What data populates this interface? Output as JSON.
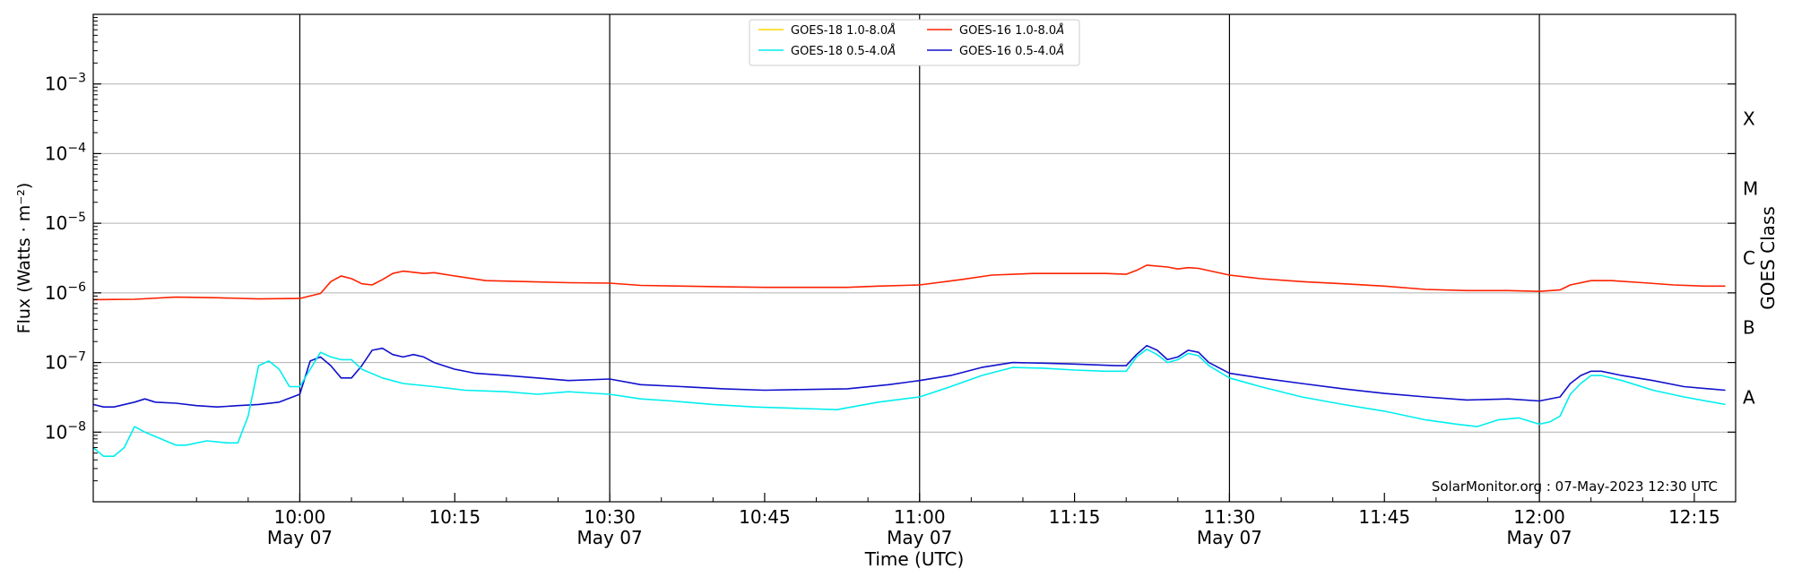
{
  "chart_data": {
    "type": "line",
    "xlabel": "Time (UTC)",
    "ylabel": "Flux (Watts · m⁻²)",
    "right_ylabel": "GOES Class",
    "xlim": [
      "09:40",
      "12:19"
    ],
    "ylim_log10": [
      -9.0,
      -2.0
    ],
    "y_scale": "log",
    "grid": "horizontal at each decade",
    "y_ticks": [
      {
        "value": "1e-8",
        "label": "10",
        "exp": "−8"
      },
      {
        "value": "1e-7",
        "label": "10",
        "exp": "−7"
      },
      {
        "value": "1e-6",
        "label": "10",
        "exp": "−6"
      },
      {
        "value": "1e-5",
        "label": "10",
        "exp": "−5"
      },
      {
        "value": "1e-4",
        "label": "10",
        "exp": "−4"
      },
      {
        "value": "1e-3",
        "label": "10",
        "exp": "−3"
      }
    ],
    "x_ticks": [
      {
        "time": "10:00",
        "date": "May 07"
      },
      {
        "time": "10:15",
        "date": ""
      },
      {
        "time": "10:30",
        "date": "May 07"
      },
      {
        "time": "10:45",
        "date": ""
      },
      {
        "time": "11:00",
        "date": "May 07"
      },
      {
        "time": "11:15",
        "date": ""
      },
      {
        "time": "11:30",
        "date": "May 07"
      },
      {
        "time": "11:45",
        "date": ""
      },
      {
        "time": "12:00",
        "date": "May 07"
      },
      {
        "time": "12:15",
        "date": ""
      }
    ],
    "vertical_lines": [
      "10:00",
      "10:30",
      "11:00",
      "11:30",
      "12:00"
    ],
    "goes_classes": [
      {
        "label": "X",
        "flux": "1e-4"
      },
      {
        "label": "M",
        "flux": "1e-5"
      },
      {
        "label": "C",
        "flux": "1e-6"
      },
      {
        "label": "B",
        "flux": "1e-7"
      },
      {
        "label": "A",
        "flux": "1e-8"
      }
    ],
    "legend_placement": "top-center",
    "legend": [
      {
        "name": "GOES-18 1.0-8.0",
        "unit": "Å",
        "color": "#FFD700"
      },
      {
        "name": "GOES-16 1.0-8.0",
        "unit": "Å",
        "color": "#FF2200"
      },
      {
        "name": "GOES-18 0.5-4.0",
        "unit": "Å",
        "color": "#00EEEE"
      },
      {
        "name": "GOES-16 0.5-4.0",
        "unit": "Å",
        "color": "#1010CC"
      }
    ],
    "series": [
      {
        "name": "GOES-16 1.0-8.0",
        "color": "#FF2200",
        "points": [
          [
            "09:40",
            "8.0e-7"
          ],
          [
            "09:44",
            "8.1e-7"
          ],
          [
            "09:48",
            "8.7e-7"
          ],
          [
            "09:52",
            "8.5e-7"
          ],
          [
            "09:56",
            "8.2e-7"
          ],
          [
            "10:00",
            "8.3e-7"
          ],
          [
            "10:02",
            "9.8e-7"
          ],
          [
            "10:03",
            "1.45e-6"
          ],
          [
            "10:04",
            "1.75e-6"
          ],
          [
            "10:05",
            "1.6e-6"
          ],
          [
            "10:06",
            "1.35e-6"
          ],
          [
            "10:07",
            "1.3e-6"
          ],
          [
            "10:08",
            "1.55e-6"
          ],
          [
            "10:09",
            "1.9e-6"
          ],
          [
            "10:10",
            "2.05e-6"
          ],
          [
            "10:12",
            "1.9e-6"
          ],
          [
            "10:13",
            "1.95e-6"
          ],
          [
            "10:15",
            "1.75e-6"
          ],
          [
            "10:18",
            "1.5e-6"
          ],
          [
            "10:22",
            "1.45e-6"
          ],
          [
            "10:26",
            "1.4e-6"
          ],
          [
            "10:30",
            "1.38e-6"
          ],
          [
            "10:33",
            "1.28e-6"
          ],
          [
            "10:37",
            "1.25e-6"
          ],
          [
            "10:41",
            "1.22e-6"
          ],
          [
            "10:45",
            "1.2e-6"
          ],
          [
            "10:49",
            "1.2e-6"
          ],
          [
            "10:53",
            "1.2e-6"
          ],
          [
            "10:56",
            "1.25e-6"
          ],
          [
            "11:00",
            "1.3e-6"
          ],
          [
            "11:04",
            "1.55e-6"
          ],
          [
            "11:07",
            "1.8e-6"
          ],
          [
            "11:11",
            "1.9e-6"
          ],
          [
            "11:15",
            "1.9e-6"
          ],
          [
            "11:18",
            "1.9e-6"
          ],
          [
            "11:20",
            "1.85e-6"
          ],
          [
            "11:21",
            "2.1e-6"
          ],
          [
            "11:22",
            "2.5e-6"
          ],
          [
            "11:24",
            "2.35e-6"
          ],
          [
            "11:25",
            "2.2e-6"
          ],
          [
            "11:26",
            "2.3e-6"
          ],
          [
            "11:27",
            "2.25e-6"
          ],
          [
            "11:30",
            "1.8e-6"
          ],
          [
            "11:33",
            "1.6e-6"
          ],
          [
            "11:37",
            "1.45e-6"
          ],
          [
            "11:41",
            "1.35e-6"
          ],
          [
            "11:45",
            "1.25e-6"
          ],
          [
            "11:49",
            "1.12e-6"
          ],
          [
            "11:53",
            "1.08e-6"
          ],
          [
            "11:57",
            "1.08e-6"
          ],
          [
            "12:00",
            "1.05e-6"
          ],
          [
            "12:02",
            "1.1e-6"
          ],
          [
            "12:03",
            "1.3e-6"
          ],
          [
            "12:05",
            "1.5e-6"
          ],
          [
            "12:07",
            "1.5e-6"
          ],
          [
            "12:10",
            "1.4e-6"
          ],
          [
            "12:13",
            "1.3e-6"
          ],
          [
            "12:16",
            "1.25e-6"
          ],
          [
            "12:18",
            "1.25e-6"
          ]
        ]
      },
      {
        "name": "GOES-16 0.5-4.0",
        "color": "#1010CC",
        "points": [
          [
            "09:40",
            "2.5e-8"
          ],
          [
            "09:41",
            "2.3e-8"
          ],
          [
            "09:42",
            "2.3e-8"
          ],
          [
            "09:44",
            "2.7e-8"
          ],
          [
            "09:45",
            "3.0e-8"
          ],
          [
            "09:46",
            "2.7e-8"
          ],
          [
            "09:48",
            "2.6e-8"
          ],
          [
            "09:50",
            "2.4e-8"
          ],
          [
            "09:52",
            "2.3e-8"
          ],
          [
            "09:54",
            "2.4e-8"
          ],
          [
            "09:56",
            "2.5e-8"
          ],
          [
            "09:58",
            "2.7e-8"
          ],
          [
            "10:00",
            "3.5e-8"
          ],
          [
            "10:01",
            "1.05e-7"
          ],
          [
            "10:02",
            "1.2e-7"
          ],
          [
            "10:03",
            "9e-8"
          ],
          [
            "10:04",
            "6e-8"
          ],
          [
            "10:05",
            "6e-8"
          ],
          [
            "10:06",
            "9e-8"
          ],
          [
            "10:07",
            "1.5e-7"
          ],
          [
            "10:08",
            "1.6e-7"
          ],
          [
            "10:09",
            "1.3e-7"
          ],
          [
            "10:10",
            "1.2e-7"
          ],
          [
            "10:11",
            "1.3e-7"
          ],
          [
            "10:12",
            "1.2e-7"
          ],
          [
            "10:13",
            "1.0e-7"
          ],
          [
            "10:15",
            "8e-8"
          ],
          [
            "10:17",
            "7e-8"
          ],
          [
            "10:20",
            "6.5e-8"
          ],
          [
            "10:23",
            "6e-8"
          ],
          [
            "10:26",
            "5.5e-8"
          ],
          [
            "10:30",
            "5.8e-8"
          ],
          [
            "10:33",
            "4.8e-8"
          ],
          [
            "10:37",
            "4.5e-8"
          ],
          [
            "10:41",
            "4.2e-8"
          ],
          [
            "10:45",
            "4.0e-8"
          ],
          [
            "10:49",
            "4.1e-8"
          ],
          [
            "10:53",
            "4.2e-8"
          ],
          [
            "10:57",
            "4.8e-8"
          ],
          [
            "11:00",
            "5.5e-8"
          ],
          [
            "11:03",
            "6.5e-8"
          ],
          [
            "11:06",
            "8.5e-8"
          ],
          [
            "11:09",
            "1.0e-7"
          ],
          [
            "11:12",
            "9.8e-8"
          ],
          [
            "11:15",
            "9.5e-8"
          ],
          [
            "11:19",
            "9.0e-8"
          ],
          [
            "11:20",
            "9.0e-8"
          ],
          [
            "11:21",
            "1.3e-7"
          ],
          [
            "11:22",
            "1.75e-7"
          ],
          [
            "11:23",
            "1.5e-7"
          ],
          [
            "11:24",
            "1.1e-7"
          ],
          [
            "11:25",
            "1.2e-7"
          ],
          [
            "11:26",
            "1.5e-7"
          ],
          [
            "11:27",
            "1.4e-7"
          ],
          [
            "11:28",
            "1.0e-7"
          ],
          [
            "11:30",
            "7e-8"
          ],
          [
            "11:33",
            "6e-8"
          ],
          [
            "11:37",
            "5e-8"
          ],
          [
            "11:41",
            "4.2e-8"
          ],
          [
            "11:45",
            "3.6e-8"
          ],
          [
            "11:49",
            "3.2e-8"
          ],
          [
            "11:53",
            "2.9e-8"
          ],
          [
            "11:57",
            "3.0e-8"
          ],
          [
            "12:00",
            "2.8e-8"
          ],
          [
            "12:02",
            "3.2e-8"
          ],
          [
            "12:03",
            "5e-8"
          ],
          [
            "12:04",
            "6.5e-8"
          ],
          [
            "12:05",
            "7.5e-8"
          ],
          [
            "12:06",
            "7.5e-8"
          ],
          [
            "12:08",
            "6.5e-8"
          ],
          [
            "12:11",
            "5.5e-8"
          ],
          [
            "12:14",
            "4.5e-8"
          ],
          [
            "12:18",
            "4.0e-8"
          ]
        ]
      },
      {
        "name": "GOES-18 0.5-4.0",
        "color": "#00EEEE",
        "points": [
          [
            "09:40",
            "6e-9"
          ],
          [
            "09:41",
            "4.5e-9"
          ],
          [
            "09:42",
            "4.5e-9"
          ],
          [
            "09:43",
            "6e-9"
          ],
          [
            "09:44",
            "1.2e-8"
          ],
          [
            "09:45",
            "1.0e-8"
          ],
          [
            "09:47",
            "7.5e-9"
          ],
          [
            "09:48",
            "6.5e-9"
          ],
          [
            "09:49",
            "6.5e-9"
          ],
          [
            "09:51",
            "7.5e-9"
          ],
          [
            "09:53",
            "7e-9"
          ],
          [
            "09:54",
            "7e-9"
          ],
          [
            "09:55",
            "1.7e-8"
          ],
          [
            "09:56",
            "9e-8"
          ],
          [
            "09:57",
            "1.05e-7"
          ],
          [
            "09:58",
            "8e-8"
          ],
          [
            "09:59",
            "4.5e-8"
          ],
          [
            "10:00",
            "4.5e-8"
          ],
          [
            "10:01",
            "8e-8"
          ],
          [
            "10:02",
            "1.4e-7"
          ],
          [
            "10:03",
            "1.2e-7"
          ],
          [
            "10:04",
            "1.1e-7"
          ],
          [
            "10:05",
            "1.1e-7"
          ],
          [
            "10:06",
            "8e-8"
          ],
          [
            "10:08",
            "6e-8"
          ],
          [
            "10:10",
            "5e-8"
          ],
          [
            "10:13",
            "4.5e-8"
          ],
          [
            "10:16",
            "4e-8"
          ],
          [
            "10:20",
            "3.8e-8"
          ],
          [
            "10:23",
            "3.5e-8"
          ],
          [
            "10:26",
            "3.8e-8"
          ],
          [
            "10:30",
            "3.5e-8"
          ],
          [
            "10:33",
            "3.0e-8"
          ],
          [
            "10:36",
            "2.8e-8"
          ],
          [
            "10:40",
            "2.5e-8"
          ],
          [
            "10:44",
            "2.3e-8"
          ],
          [
            "10:48",
            "2.2e-8"
          ],
          [
            "10:52",
            "2.1e-8"
          ],
          [
            "10:56",
            "2.7e-8"
          ],
          [
            "11:00",
            "3.2e-8"
          ],
          [
            "11:03",
            "4.5e-8"
          ],
          [
            "11:06",
            "6.5e-8"
          ],
          [
            "11:09",
            "8.5e-8"
          ],
          [
            "11:12",
            "8.3e-8"
          ],
          [
            "11:15",
            "7.8e-8"
          ],
          [
            "11:18",
            "7.5e-8"
          ],
          [
            "11:20",
            "7.5e-8"
          ],
          [
            "11:21",
            "1.2e-7"
          ],
          [
            "11:22",
            "1.55e-7"
          ],
          [
            "11:23",
            "1.3e-7"
          ],
          [
            "11:24",
            "1.0e-7"
          ],
          [
            "11:25",
            "1.1e-7"
          ],
          [
            "11:26",
            "1.35e-7"
          ],
          [
            "11:27",
            "1.25e-7"
          ],
          [
            "11:28",
            "9e-8"
          ],
          [
            "11:30",
            "6e-8"
          ],
          [
            "11:33",
            "4.5e-8"
          ],
          [
            "11:37",
            "3.2e-8"
          ],
          [
            "11:41",
            "2.5e-8"
          ],
          [
            "11:45",
            "2.0e-8"
          ],
          [
            "11:49",
            "1.5e-8"
          ],
          [
            "11:52",
            "1.3e-8"
          ],
          [
            "11:54",
            "1.2e-8"
          ],
          [
            "11:56",
            "1.5e-8"
          ],
          [
            "11:58",
            "1.6e-8"
          ],
          [
            "12:00",
            "1.3e-8"
          ],
          [
            "12:01",
            "1.4e-8"
          ],
          [
            "12:02",
            "1.7e-8"
          ],
          [
            "12:03",
            "3.5e-8"
          ],
          [
            "12:04",
            "5e-8"
          ],
          [
            "12:05",
            "6.5e-8"
          ],
          [
            "12:06",
            "6.5e-8"
          ],
          [
            "12:08",
            "5.5e-8"
          ],
          [
            "12:11",
            "4e-8"
          ],
          [
            "12:14",
            "3.2e-8"
          ],
          [
            "12:18",
            "2.5e-8"
          ]
        ]
      }
    ],
    "watermark": "SolarMonitor.org : 07-May-2023 12:30 UTC"
  }
}
